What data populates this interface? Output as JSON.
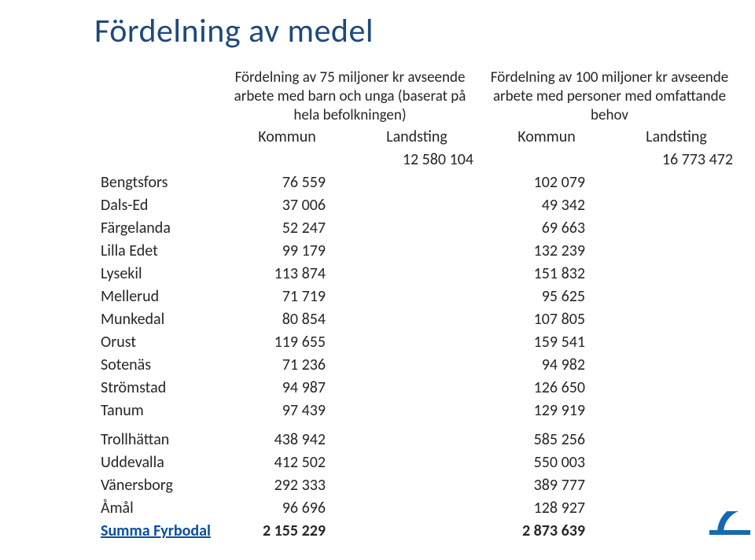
{
  "title": "Fördelning av medel",
  "title_color": "#1f497d",
  "header": {
    "group1": "Fördelning av 75 miljoner kr avseende arbete med barn och unga (baserat på hela befolkningen)",
    "group2": "Fördelning av 100 miljoner kr avseende arbete med personer med omfattande behov",
    "sub_kommun": "Kommun",
    "sub_landsting": "Landsting"
  },
  "landsting_totals": {
    "l1": "12 580 104",
    "l2": "16 773 472"
  },
  "rows": [
    {
      "name": "Bengtsfors",
      "k1": "76 559",
      "k2": "102 079"
    },
    {
      "name": "Dals-Ed",
      "k1": "37 006",
      "k2": "49 342"
    },
    {
      "name": "Färgelanda",
      "k1": "52 247",
      "k2": "69 663"
    },
    {
      "name": "Lilla Edet",
      "k1": "99 179",
      "k2": "132 239"
    },
    {
      "name": "Lysekil",
      "k1": "113 874",
      "k2": "151 832"
    },
    {
      "name": "Mellerud",
      "k1": "71 719",
      "k2": "95 625"
    },
    {
      "name": "Munkedal",
      "k1": "80 854",
      "k2": "107 805"
    },
    {
      "name": "Orust",
      "k1": "119 655",
      "k2": "159 541"
    },
    {
      "name": "Sotenäs",
      "k1": "71 236",
      "k2": "94 982"
    },
    {
      "name": "Strömstad",
      "k1": "94 987",
      "k2": "126 650"
    },
    {
      "name": "Tanum",
      "k1": "97 439",
      "k2": "129 919"
    }
  ],
  "rows2": [
    {
      "name": "Trollhättan",
      "k1": "438 942",
      "k2": "585 256"
    },
    {
      "name": "Uddevalla",
      "k1": "412 502",
      "k2": "550 003"
    },
    {
      "name": "Vänersborg",
      "k1": "292 333",
      "k2": "389 777"
    },
    {
      "name": "Åmål",
      "k1": "96 696",
      "k2": "128 927"
    }
  ],
  "summary": {
    "name": "Summa Fyrbodal",
    "k1": "2 155 229",
    "k2": "2 873 639"
  },
  "style": {
    "body_fontsize": 20,
    "title_fontsize": 42,
    "accent_color": "#1569b3",
    "link_color": "#0b4ea0",
    "background_color": "#ffffff",
    "text_color": "#262626"
  }
}
